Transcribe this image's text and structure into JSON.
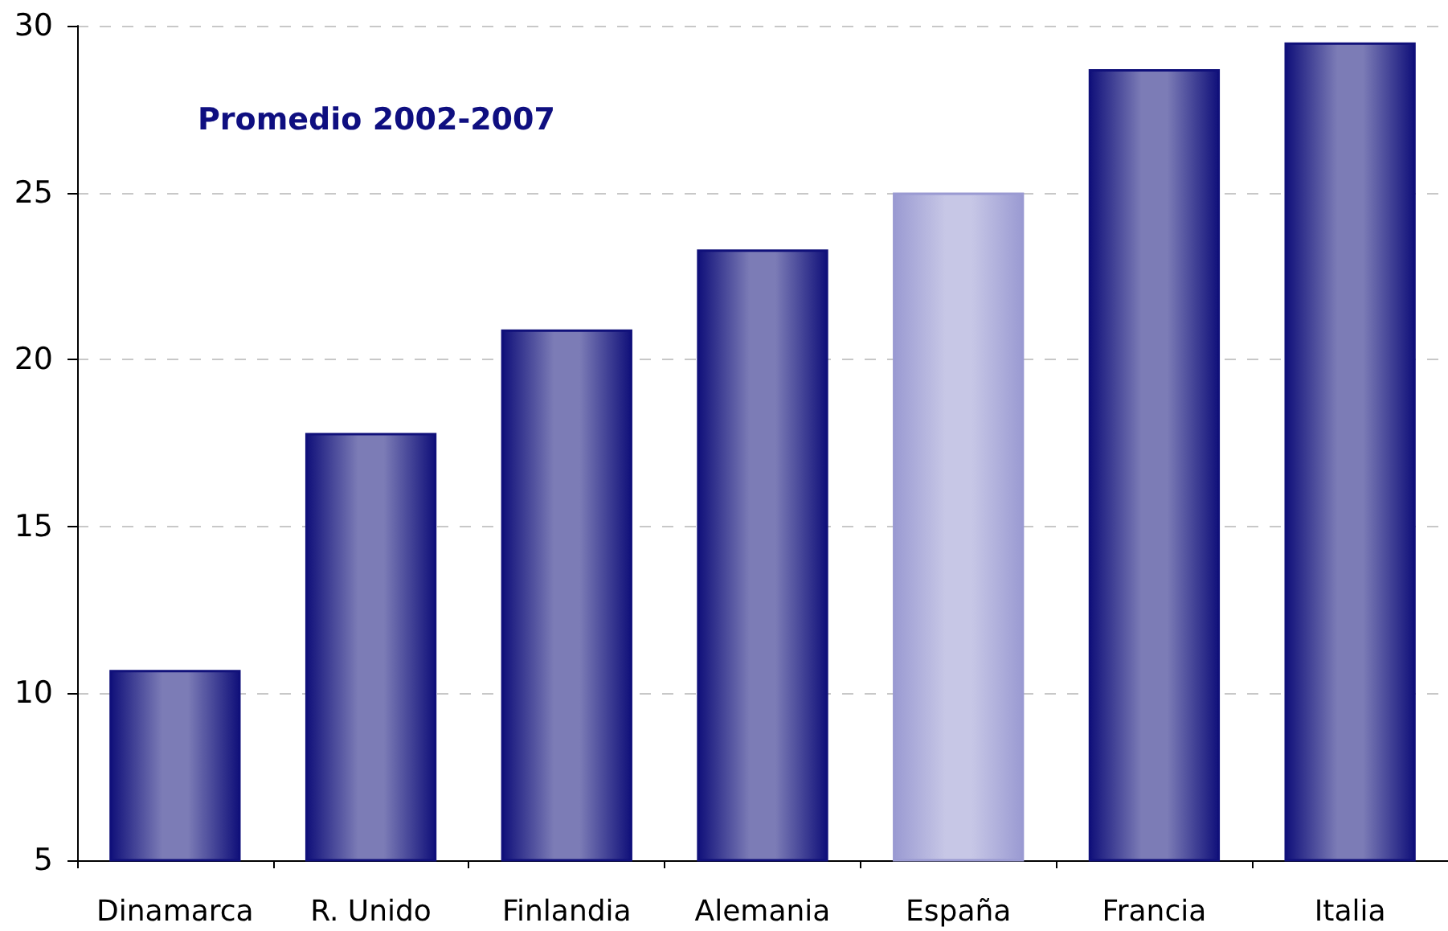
{
  "chart_data": {
    "type": "bar",
    "title": "Promedio 2002-2007",
    "categories": [
      "Dinamarca",
      "R. Unido",
      "Finlandia",
      "Alemania",
      "España",
      "Francia",
      "Italia"
    ],
    "values": [
      10.7,
      17.8,
      20.9,
      23.3,
      25.0,
      28.7,
      29.5
    ],
    "colors": [
      "#10107a",
      "#10107a",
      "#10107a",
      "#10107a",
      "#9a9ad2",
      "#10107a",
      "#10107a"
    ],
    "ylim": [
      5,
      30
    ],
    "yticks": [
      5,
      10,
      15,
      20,
      25,
      30
    ],
    "grid": "y"
  }
}
